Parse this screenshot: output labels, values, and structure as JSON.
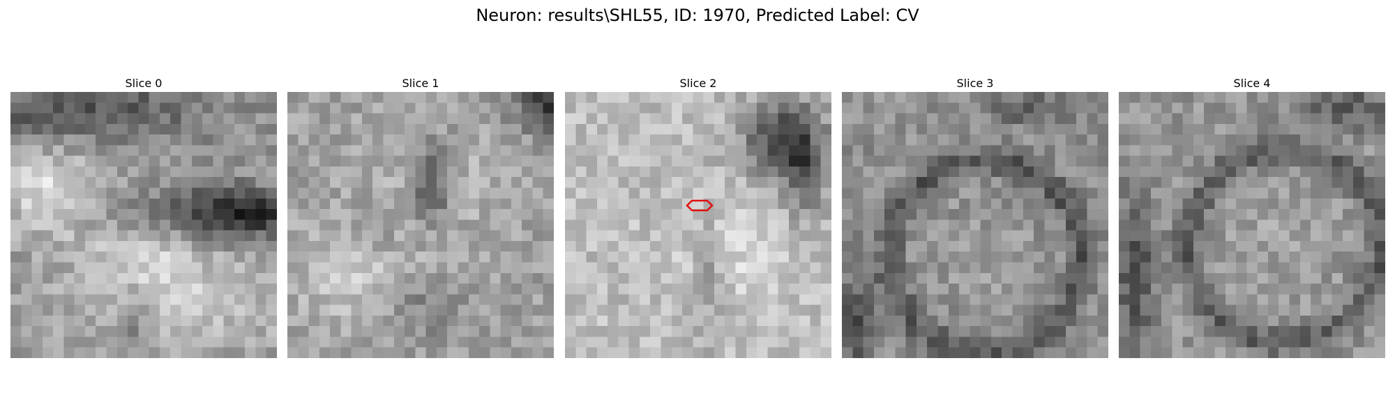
{
  "figure": {
    "title": "Neuron: results\\SHL55, ID: 1970, Predicted Label: CV"
  },
  "panels": [
    {
      "title": "Slice 0",
      "has_marker": false
    },
    {
      "title": "Slice 1",
      "has_marker": false
    },
    {
      "title": "Slice 2",
      "has_marker": true
    },
    {
      "title": "Slice 3",
      "has_marker": false
    },
    {
      "title": "Slice 4",
      "has_marker": false
    }
  ],
  "image": {
    "grid_size": 25,
    "colormap": "gray"
  },
  "marker": {
    "shape": "hexagon",
    "color": "#e01010"
  }
}
